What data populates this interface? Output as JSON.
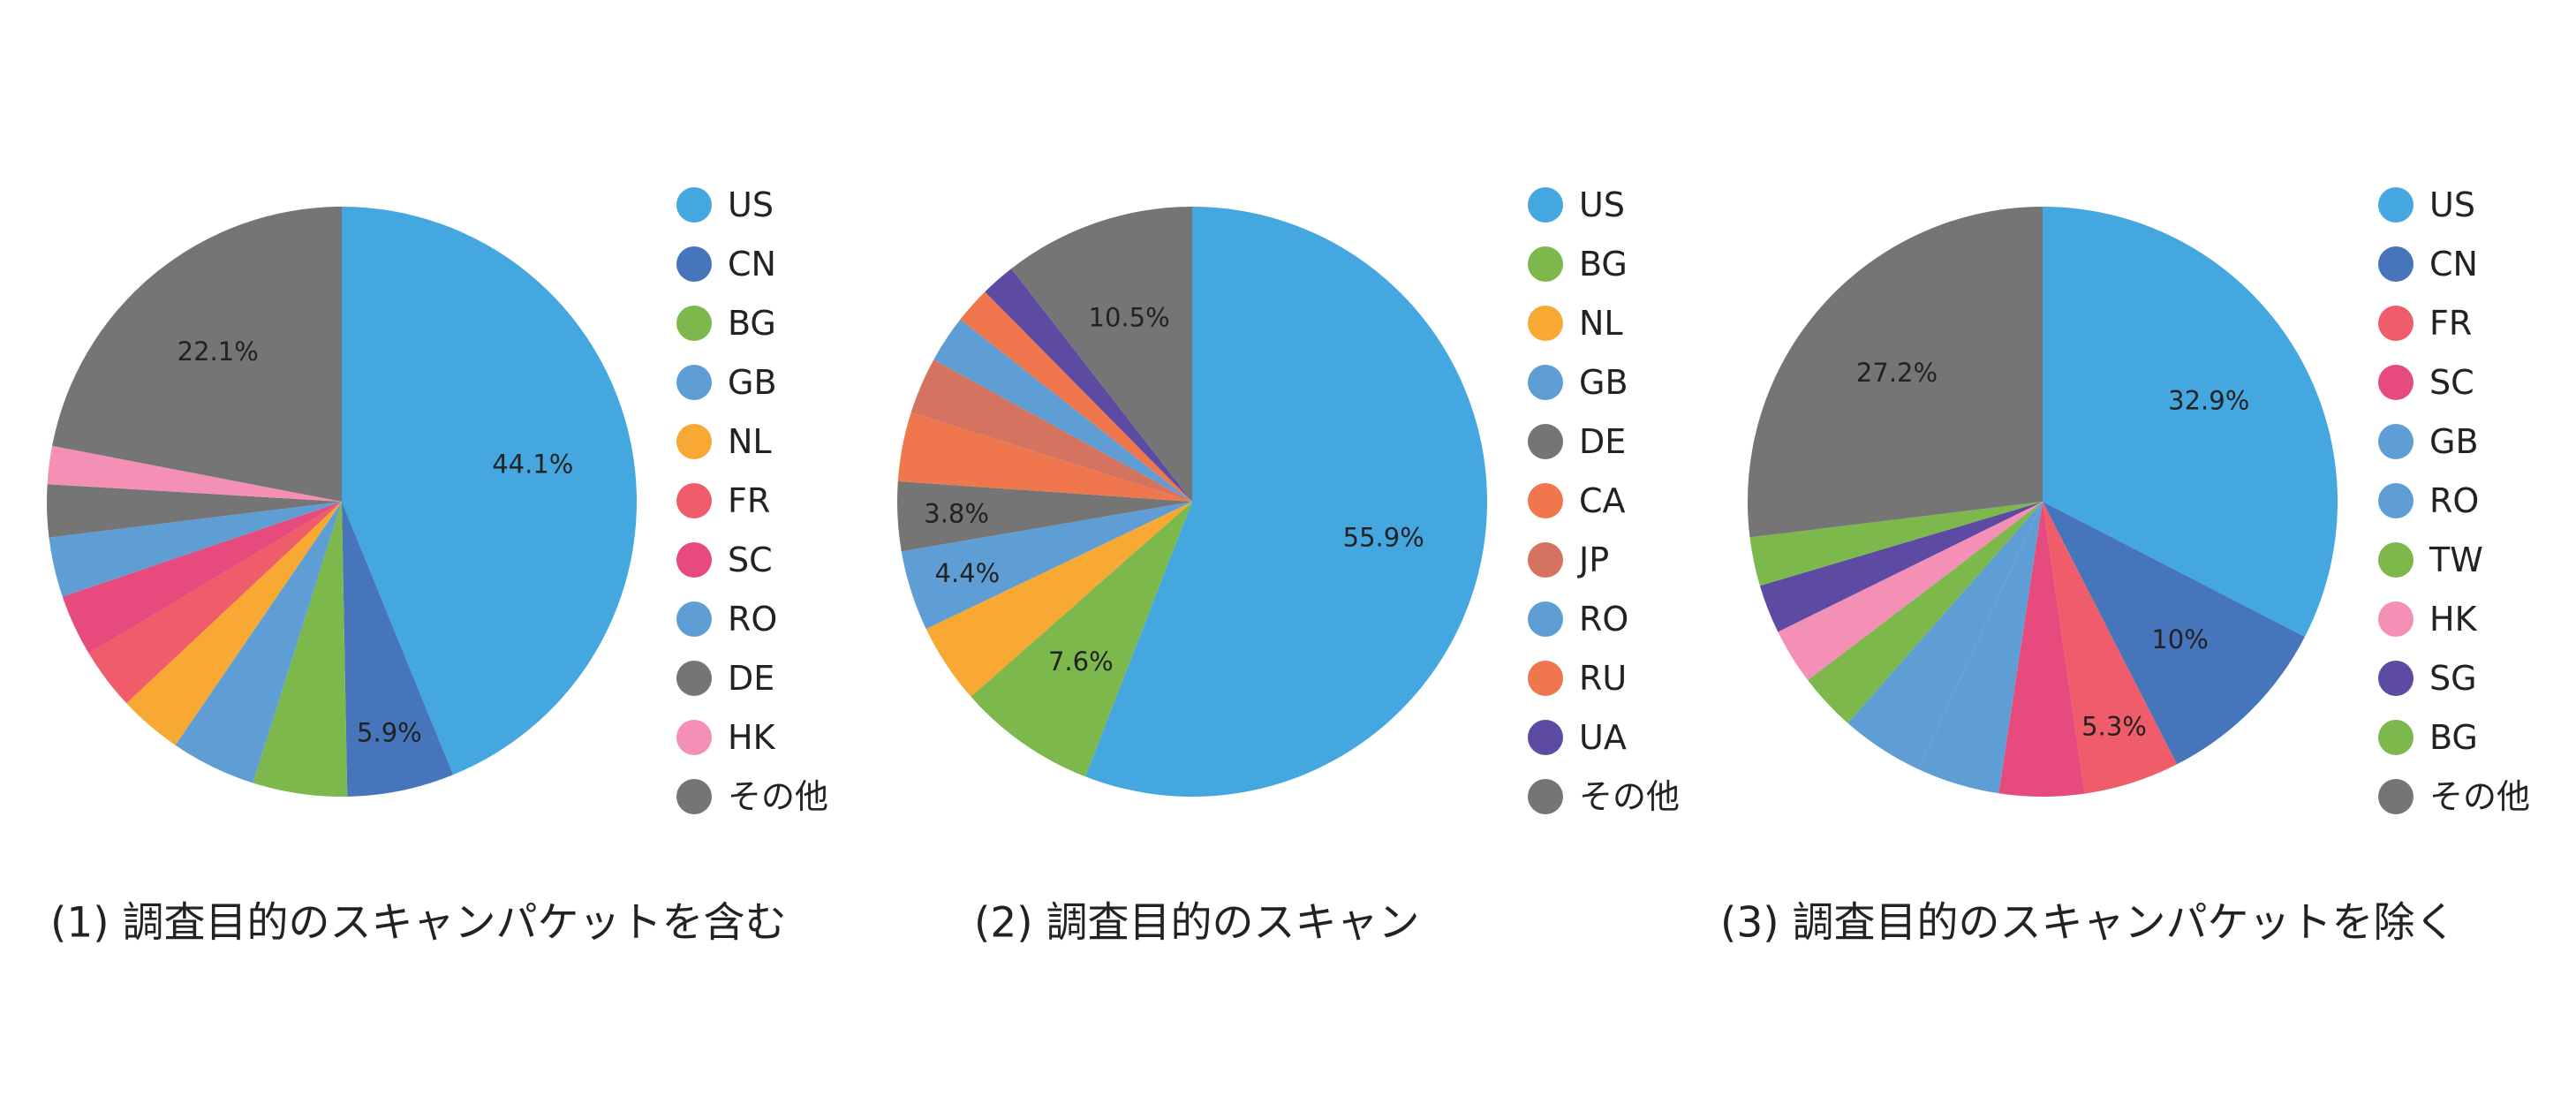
{
  "chart_data": [
    {
      "type": "pie",
      "caption": "(1) 調査目的のスキャンパケットを含む",
      "slices": [
        {
          "label": "US",
          "value": 44.1,
          "color": "#45A7DF",
          "data_label": "44.1%"
        },
        {
          "label": "CN",
          "value": 5.9,
          "color": "#4775BC",
          "data_label": "5.9%"
        },
        {
          "label": "BG",
          "value": 5.2,
          "color": "#7DB84C",
          "data_label": ""
        },
        {
          "label": "GB",
          "value": 4.7,
          "color": "#5F9ED5",
          "data_label": ""
        },
        {
          "label": "NL",
          "value": 3.5,
          "color": "#F7A933",
          "data_label": ""
        },
        {
          "label": "FR",
          "value": 3.4,
          "color": "#EF5D6A",
          "data_label": ""
        },
        {
          "label": "SC",
          "value": 3.4,
          "color": "#E74B7D",
          "data_label": ""
        },
        {
          "label": "RO",
          "value": 3.3,
          "color": "#5F9ED5",
          "data_label": ""
        },
        {
          "label": "DE",
          "value": 2.9,
          "color": "#757575",
          "data_label": ""
        },
        {
          "label": "HK",
          "value": 2.1,
          "color": "#F48FB6",
          "data_label": ""
        },
        {
          "label": "その他",
          "value": 22.1,
          "color": "#757575",
          "data_label": "22.1%"
        }
      ]
    },
    {
      "type": "pie",
      "caption": "(2) 調査目的のスキャン",
      "slices": [
        {
          "label": "US",
          "value": 55.9,
          "color": "#45A7DF",
          "data_label": "55.9%"
        },
        {
          "label": "BG",
          "value": 7.6,
          "color": "#7DB84C",
          "data_label": "7.6%"
        },
        {
          "label": "NL",
          "value": 4.4,
          "color": "#F7A933",
          "data_label": ""
        },
        {
          "label": "GB",
          "value": 4.4,
          "color": "#5F9ED5",
          "data_label": "4.4%"
        },
        {
          "label": "DE",
          "value": 3.8,
          "color": "#757575",
          "data_label": "3.8%"
        },
        {
          "label": "CA",
          "value": 3.8,
          "color": "#F0764D",
          "data_label": ""
        },
        {
          "label": "JP",
          "value": 3.1,
          "color": "#D4735F",
          "data_label": ""
        },
        {
          "label": "RO",
          "value": 2.6,
          "color": "#5F9ED5",
          "data_label": ""
        },
        {
          "label": "RU",
          "value": 2.0,
          "color": "#F0764D",
          "data_label": ""
        },
        {
          "label": "UA",
          "value": 1.9,
          "color": "#5D4BA3",
          "data_label": ""
        },
        {
          "label": "その他",
          "value": 10.5,
          "color": "#757575",
          "data_label": "10.5%"
        }
      ]
    },
    {
      "type": "pie",
      "caption": "(3) 調査目的のスキャンパケットを除く",
      "slices": [
        {
          "label": "US",
          "value": 32.9,
          "color": "#45A7DF",
          "data_label": "32.9%"
        },
        {
          "label": "CN",
          "value": 10,
          "color": "#4775BC",
          "data_label": "10%"
        },
        {
          "label": "FR",
          "value": 5.3,
          "color": "#EF5D6A",
          "data_label": "5.3%"
        },
        {
          "label": "SC",
          "value": 4.7,
          "color": "#E74B7D",
          "data_label": ""
        },
        {
          "label": "GB",
          "value": 4.6,
          "color": "#5F9ED5",
          "data_label": ""
        },
        {
          "label": "RO",
          "value": 4.6,
          "color": "#5F9ED5",
          "data_label": ""
        },
        {
          "label": "TW",
          "value": 3.2,
          "color": "#7DB84C",
          "data_label": ""
        },
        {
          "label": "HK",
          "value": 3.1,
          "color": "#F48FB6",
          "data_label": ""
        },
        {
          "label": "SG",
          "value": 2.7,
          "color": "#5D4BA3",
          "data_label": ""
        },
        {
          "label": "BG",
          "value": 2.7,
          "color": "#7DB84C",
          "data_label": ""
        },
        {
          "label": "その他",
          "value": 27.2,
          "color": "#757575",
          "data_label": "27.2%"
        }
      ]
    }
  ]
}
